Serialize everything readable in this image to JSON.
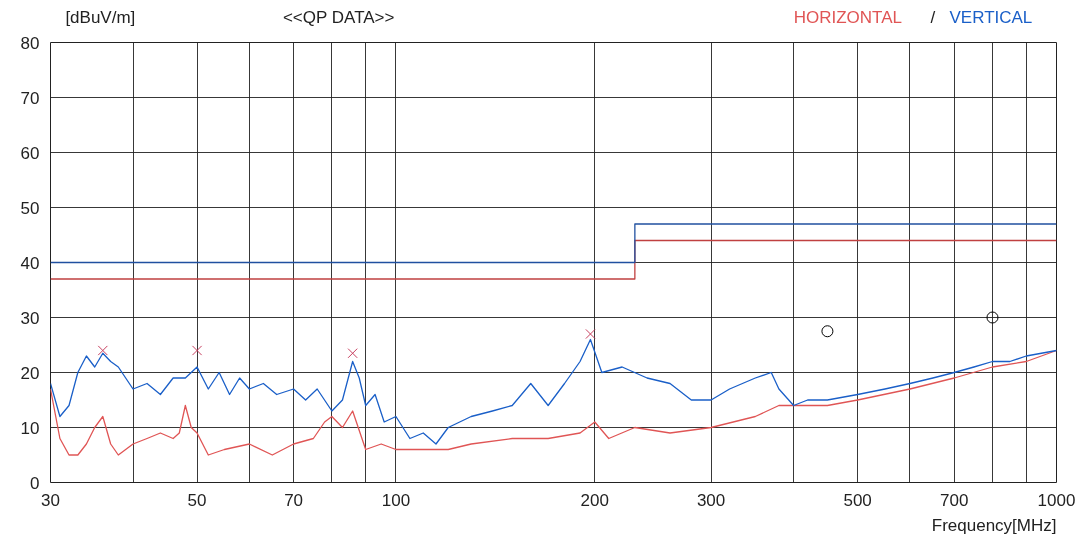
{
  "chart_data": {
    "type": "line",
    "title": "<<QP DATA>>",
    "ylabel": "[dBuV/m]",
    "xlabel": "Frequency[MHz]",
    "log": "x",
    "grid": true,
    "annotations": [
      "/"
    ],
    "xlim": [
      30,
      1000
    ],
    "ylim": [
      0,
      80
    ],
    "xticks": [
      30,
      {
        "value": 40,
        "label": null
      },
      50,
      {
        "value": 60,
        "label": null
      },
      70,
      {
        "value": 80,
        "label": null
      },
      {
        "value": 90,
        "label": null
      },
      100,
      200,
      300,
      {
        "value": 400,
        "label": null
      },
      500,
      {
        "value": 600,
        "label": null
      },
      700,
      {
        "value": 800,
        "label": null
      },
      {
        "value": 900,
        "label": null
      },
      1000
    ],
    "yticks": [
      0,
      10,
      20,
      30,
      40,
      50,
      60,
      70,
      80
    ],
    "series": [
      {
        "name": "HORIZONTAL",
        "color": "#e05555",
        "x": [
          30,
          31,
          32,
          33,
          34,
          35,
          36,
          37,
          38,
          40,
          42,
          44,
          46,
          47,
          48,
          49,
          50,
          52,
          55,
          60,
          65,
          70,
          75,
          78,
          80,
          83,
          86,
          90,
          95,
          100,
          110,
          120,
          130,
          150,
          170,
          190,
          200,
          210,
          230,
          260,
          300,
          350,
          380,
          400,
          450,
          500,
          600,
          700,
          800,
          900,
          1000
        ],
        "values": [
          17,
          8,
          5,
          5,
          7,
          10,
          12,
          7,
          5,
          7,
          8,
          9,
          8,
          9,
          14,
          10,
          9,
          5,
          6,
          7,
          5,
          7,
          8,
          11,
          12,
          10,
          13,
          6,
          7,
          6,
          6,
          6,
          7,
          8,
          8,
          9,
          11,
          8,
          10,
          9,
          10,
          12,
          14,
          14,
          14,
          15,
          17,
          19,
          21,
          22,
          24
        ]
      },
      {
        "name": "VERTICAL",
        "color": "#1a5fc8",
        "x": [
          30,
          31,
          32,
          33,
          34,
          35,
          36,
          37,
          38,
          40,
          42,
          44,
          46,
          48,
          50,
          52,
          54,
          56,
          58,
          60,
          63,
          66,
          70,
          73,
          76,
          80,
          83,
          86,
          88,
          90,
          93,
          96,
          100,
          105,
          110,
          115,
          120,
          130,
          140,
          150,
          160,
          170,
          180,
          190,
          197,
          205,
          220,
          240,
          260,
          280,
          300,
          320,
          350,
          370,
          380,
          400,
          420,
          450,
          500,
          550,
          600,
          650,
          700,
          750,
          800,
          850,
          900,
          1000
        ],
        "values": [
          18,
          12,
          14,
          20,
          23,
          21,
          23.5,
          22,
          21,
          17,
          18,
          16,
          19,
          19,
          21,
          17,
          20,
          16,
          19,
          17,
          18,
          16,
          17,
          15,
          17,
          13,
          15,
          22,
          19,
          14,
          16,
          11,
          12,
          8,
          9,
          7,
          10,
          12,
          13,
          14,
          18,
          14,
          18,
          22,
          26,
          20,
          21,
          19,
          18,
          15,
          15,
          17,
          19,
          20,
          17,
          14,
          15,
          15,
          16,
          17,
          18,
          19,
          20,
          21,
          22,
          22,
          23,
          24
        ]
      },
      {
        "type": "line",
        "color": "#c04040",
        "x": [
          30,
          230,
          230,
          1000
        ],
        "values": [
          37,
          37,
          44,
          44
        ]
      },
      {
        "type": "line",
        "color": "#2050a0",
        "x": [
          30,
          230,
          230,
          1000
        ],
        "values": [
          40,
          40,
          47,
          47
        ]
      },
      {
        "type": "scatter",
        "marker": "cross",
        "color": "#c84060",
        "x": [
          36,
          50,
          86,
          197
        ],
        "values": [
          24,
          24,
          23.5,
          27
        ]
      },
      {
        "type": "scatter",
        "marker": "circle",
        "color": "#000000",
        "x": [
          450,
          800
        ],
        "values": [
          27.5,
          30
        ]
      }
    ]
  }
}
